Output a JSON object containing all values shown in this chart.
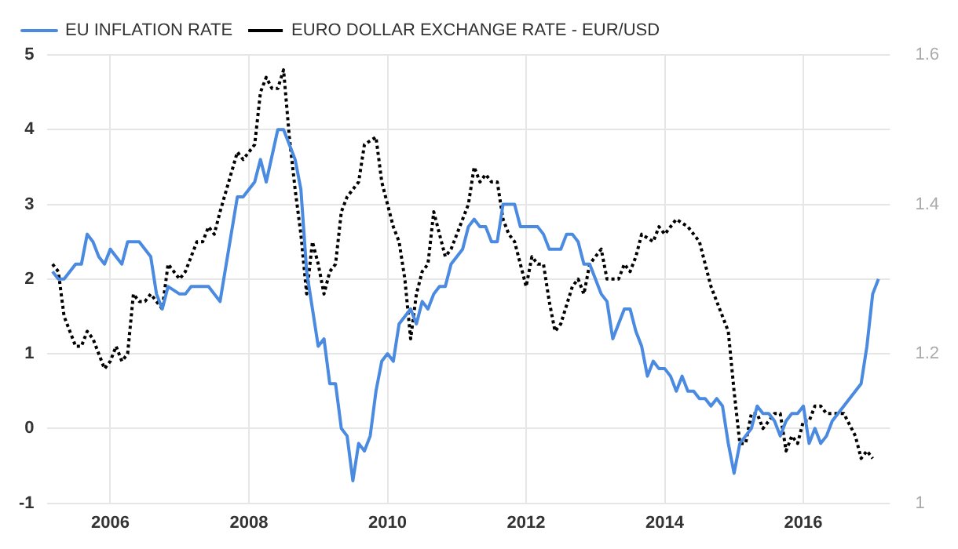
{
  "chart_data": {
    "type": "line",
    "legend": "top left",
    "grid": true,
    "line_style": "solid",
    "marker": "none",
    "xlim": [
      "2005-02",
      "2017-04"
    ],
    "xticks": [
      "2006",
      "2008",
      "2010",
      "2012",
      "2014",
      "2016"
    ],
    "ylim": [
      -1,
      5
    ],
    "yticks": [
      -1,
      0,
      1,
      2,
      3,
      4,
      5
    ],
    "y2lim": [
      1,
      1.6
    ],
    "y2ticks": [
      1,
      1.2,
      1.4,
      1.6
    ],
    "series": [
      {
        "name": "EU INFLATION RATE",
        "color": "#4a8ae0",
        "x": [
          "2005-03",
          "2005-04",
          "2005-05",
          "2005-07",
          "2005-08",
          "2005-09",
          "2005-10",
          "2005-11",
          "2005-12",
          "2006-01",
          "2006-03",
          "2006-04",
          "2006-06",
          "2006-08",
          "2006-09",
          "2006-10",
          "2006-11",
          "2007-01",
          "2007-02",
          "2007-03",
          "2007-06",
          "2007-08",
          "2007-11",
          "2007-12",
          "2008-02",
          "2008-03",
          "2008-04",
          "2008-06",
          "2008-07",
          "2008-08",
          "2008-09",
          "2008-10",
          "2008-11",
          "2008-12",
          "2009-01",
          "2009-02",
          "2009-03",
          "2009-04",
          "2009-05",
          "2009-06",
          "2009-07",
          "2009-08",
          "2009-09",
          "2009-10",
          "2009-11",
          "2009-12",
          "2010-01",
          "2010-02",
          "2010-03",
          "2010-05",
          "2010-06",
          "2010-07",
          "2010-08",
          "2010-09",
          "2010-10",
          "2010-11",
          "2010-12",
          "2011-02",
          "2011-03",
          "2011-04",
          "2011-05",
          "2011-06",
          "2011-07",
          "2011-08",
          "2011-09",
          "2011-11",
          "2011-12",
          "2012-03",
          "2012-04",
          "2012-05",
          "2012-07",
          "2012-08",
          "2012-09",
          "2012-10",
          "2012-11",
          "2012-12",
          "2013-02",
          "2013-03",
          "2013-04",
          "2013-06",
          "2013-07",
          "2013-08",
          "2013-09",
          "2013-10",
          "2013-11",
          "2013-12",
          "2014-01",
          "2014-02",
          "2014-03",
          "2014-04",
          "2014-05",
          "2014-06",
          "2014-07",
          "2014-08",
          "2014-09",
          "2014-10",
          "2014-11",
          "2014-12",
          "2015-01",
          "2015-02",
          "2015-03",
          "2015-04",
          "2015-05",
          "2015-06",
          "2015-07",
          "2015-08",
          "2015-09",
          "2015-10",
          "2015-11",
          "2015-12",
          "2016-01",
          "2016-02",
          "2016-03",
          "2016-04",
          "2016-05",
          "2016-06",
          "2016-07",
          "2016-09",
          "2016-11",
          "2016-12",
          "2017-01",
          "2017-02"
        ],
        "values": [
          2.1,
          2.0,
          2.0,
          2.2,
          2.2,
          2.6,
          2.5,
          2.3,
          2.2,
          2.4,
          2.2,
          2.5,
          2.5,
          2.3,
          1.8,
          1.6,
          1.9,
          1.8,
          1.8,
          1.9,
          1.9,
          1.7,
          3.1,
          3.1,
          3.3,
          3.6,
          3.3,
          4.0,
          4.0,
          3.8,
          3.6,
          3.2,
          2.1,
          1.6,
          1.1,
          1.2,
          0.6,
          0.6,
          0.0,
          -0.1,
          -0.7,
          -0.2,
          -0.3,
          -0.1,
          0.5,
          0.9,
          1.0,
          0.9,
          1.4,
          1.6,
          1.4,
          1.7,
          1.6,
          1.8,
          1.9,
          1.9,
          2.2,
          2.4,
          2.7,
          2.8,
          2.7,
          2.7,
          2.5,
          2.5,
          3.0,
          3.0,
          2.7,
          2.7,
          2.6,
          2.4,
          2.4,
          2.6,
          2.6,
          2.5,
          2.2,
          2.2,
          1.8,
          1.7,
          1.2,
          1.6,
          1.6,
          1.3,
          1.1,
          0.7,
          0.9,
          0.8,
          0.8,
          0.7,
          0.5,
          0.7,
          0.5,
          0.5,
          0.4,
          0.4,
          0.3,
          0.4,
          0.3,
          -0.2,
          -0.6,
          -0.2,
          -0.1,
          0.0,
          0.3,
          0.2,
          0.2,
          0.1,
          -0.1,
          0.1,
          0.2,
          0.2,
          0.3,
          -0.2,
          0.0,
          -0.2,
          -0.1,
          0.1,
          0.2,
          0.4,
          0.6,
          1.1,
          1.8,
          2.0
        ]
      },
      {
        "name": "EURO DOLLAR EXCHANGE RATE - EUR/USD",
        "color": "#000000",
        "axis": "y2",
        "line_style": "dotted",
        "x": [
          "2005-03",
          "2005-04",
          "2005-05",
          "2005-07",
          "2005-08",
          "2005-09",
          "2005-10",
          "2005-12",
          "2006-01",
          "2006-02",
          "2006-03",
          "2006-04",
          "2006-05",
          "2006-06",
          "2006-07",
          "2006-08",
          "2006-10",
          "2006-11",
          "2007-01",
          "2007-02",
          "2007-04",
          "2007-05",
          "2007-06",
          "2007-07",
          "2007-08",
          "2007-11",
          "2007-12",
          "2008-02",
          "2008-03",
          "2008-04",
          "2008-05",
          "2008-06",
          "2008-07",
          "2008-08",
          "2008-09",
          "2008-10",
          "2008-11",
          "2008-12",
          "2009-01",
          "2009-02",
          "2009-03",
          "2009-04",
          "2009-05",
          "2009-06",
          "2009-07",
          "2009-08",
          "2009-09",
          "2009-11",
          "2009-12",
          "2010-02",
          "2010-03",
          "2010-04",
          "2010-05",
          "2010-06",
          "2010-07",
          "2010-08",
          "2010-09",
          "2010-10",
          "2010-11",
          "2010-12",
          "2011-03",
          "2011-04",
          "2011-05",
          "2011-06",
          "2011-07",
          "2011-08",
          "2011-09",
          "2011-10",
          "2011-11",
          "2012-01",
          "2012-02",
          "2012-03",
          "2012-04",
          "2012-05",
          "2012-06",
          "2012-07",
          "2012-09",
          "2012-10",
          "2012-11",
          "2012-12",
          "2013-02",
          "2013-03",
          "2013-05",
          "2013-06",
          "2013-07",
          "2013-08",
          "2013-09",
          "2013-11",
          "2013-12",
          "2014-01",
          "2014-03",
          "2014-05",
          "2014-07",
          "2014-09",
          "2014-11",
          "2014-12",
          "2015-01",
          "2015-02",
          "2015-03",
          "2015-04",
          "2015-05",
          "2015-06",
          "2015-08",
          "2015-09",
          "2015-10",
          "2015-11",
          "2015-12",
          "2016-01",
          "2016-02",
          "2016-03",
          "2016-04",
          "2016-05",
          "2016-08",
          "2016-10",
          "2016-11",
          "2016-12",
          "2017-01"
        ],
        "values": [
          1.32,
          1.31,
          1.25,
          1.21,
          1.21,
          1.23,
          1.22,
          1.18,
          1.19,
          1.21,
          1.19,
          1.2,
          1.28,
          1.27,
          1.27,
          1.28,
          1.26,
          1.32,
          1.3,
          1.31,
          1.35,
          1.35,
          1.37,
          1.36,
          1.39,
          1.47,
          1.46,
          1.48,
          1.55,
          1.57,
          1.555,
          1.555,
          1.58,
          1.49,
          1.42,
          1.36,
          1.28,
          1.35,
          1.32,
          1.28,
          1.31,
          1.32,
          1.39,
          1.41,
          1.42,
          1.43,
          1.48,
          1.49,
          1.43,
          1.37,
          1.35,
          1.3,
          1.22,
          1.28,
          1.31,
          1.32,
          1.39,
          1.36,
          1.33,
          1.34,
          1.4,
          1.45,
          1.43,
          1.44,
          1.43,
          1.43,
          1.38,
          1.36,
          1.35,
          1.29,
          1.33,
          1.32,
          1.32,
          1.27,
          1.23,
          1.24,
          1.29,
          1.3,
          1.28,
          1.32,
          1.34,
          1.3,
          1.3,
          1.32,
          1.31,
          1.33,
          1.36,
          1.35,
          1.37,
          1.36,
          1.38,
          1.37,
          1.35,
          1.29,
          1.25,
          1.23,
          1.15,
          1.08,
          1.08,
          1.12,
          1.12,
          1.1,
          1.12,
          1.12,
          1.07,
          1.09,
          1.08,
          1.11,
          1.11,
          1.13,
          1.13,
          1.12,
          1.12,
          1.09,
          1.06,
          1.07,
          1.06
        ]
      }
    ]
  }
}
